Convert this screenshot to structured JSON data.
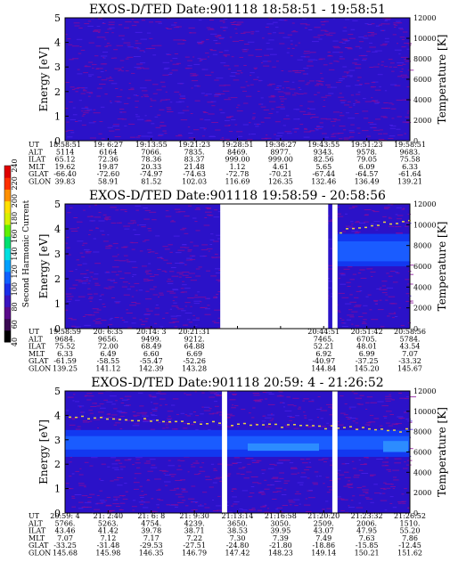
{
  "colorbar": {
    "label": "Second Harmonic Current",
    "ticks": [
      "40",
      "60",
      "80",
      "100",
      "120",
      "140",
      "160",
      "180",
      "200",
      "220",
      "240"
    ],
    "colors": [
      "#000000",
      "#3a0a52",
      "#5a0a8a",
      "#3a14c0",
      "#1a2ee8",
      "#1060ff",
      "#00a0ff",
      "#00e0e0",
      "#00e070",
      "#60f000",
      "#d8f000",
      "#ffe000",
      "#ff9000",
      "#ff3000",
      "#e00000"
    ]
  },
  "chart_data": [
    {
      "type": "heatmap",
      "title": "EXOS-D/TED   Date:901118   18:58:51 - 19:58:51",
      "ylabel": "Energy [eV]",
      "y2label": "Temperature [K]",
      "ylim": [
        0,
        5
      ],
      "y2lim": [
        0,
        12000
      ],
      "yticks": [
        "0",
        "1",
        "2",
        "3",
        "4",
        "5"
      ],
      "y2ticks": [
        "0",
        "2000",
        "4000",
        "6000",
        "8000",
        "10000",
        "12000"
      ],
      "row_labels": [
        "UT",
        "ALT",
        "ILAT",
        "MLT",
        "GLAT",
        "GLON"
      ],
      "columns": [
        [
          "18:58:51",
          "5114",
          "65.12",
          "19.62",
          "-66.40",
          "39.83"
        ],
        [
          "19: 6:27",
          "6164",
          "72.36",
          "19.87",
          "-72.60",
          "58.91"
        ],
        [
          "19:13:55",
          "7066.",
          "78.36",
          "20.33",
          "-74.97",
          "81.52"
        ],
        [
          "19:21:23",
          "7835.",
          "83.37",
          "21.48",
          "-74.63",
          "102.03"
        ],
        [
          "19:28:51",
          "8469.",
          "999.00",
          "1.12",
          "-72.78",
          "116.69"
        ],
        [
          "19:36:27",
          "8977.",
          "999.00",
          "4.61",
          "-70.21",
          "126.35"
        ],
        [
          "19:43:55",
          "9343.",
          "82.56",
          "5.65",
          "-67.44",
          "132.46"
        ],
        [
          "19:51:23",
          "9578.",
          "79.05",
          "6.09",
          "-64.57",
          "136.49"
        ],
        [
          "19:58:51",
          "9683.",
          "75.58",
          "6.33",
          "-61.64",
          "139.21"
        ]
      ],
      "gaps": []
    },
    {
      "type": "heatmap",
      "title": "EXOS-D/TED   Date:901118   19:58:59 - 20:58:56",
      "ylabel": "Energy [eV]",
      "y2label": "Temperature [K]",
      "ylim": [
        0,
        5
      ],
      "y2lim": [
        0,
        12000
      ],
      "yticks": [
        "0",
        "1",
        "2",
        "3",
        "4",
        "5"
      ],
      "y2ticks": [
        "0",
        "2000",
        "4000",
        "6000",
        "8000",
        "10000",
        "12000"
      ],
      "row_labels": [
        "UT",
        "ALT",
        "ILAT",
        "MLT",
        "GLAT",
        "GLON"
      ],
      "columns": [
        [
          "19:58:59",
          "9684.",
          "75.52",
          "6.33",
          "-61.59",
          "139.25"
        ],
        [
          "20: 6:35",
          "9656.",
          "72.00",
          "6.49",
          "-58.55",
          "141.12"
        ],
        [
          "20:14: 3",
          "9499.",
          "68.49",
          "6.60",
          "-55.47",
          "142.39"
        ],
        [
          "20:21:31",
          "9212.",
          "64.88",
          "6.69",
          "-52.26",
          "143.28"
        ],
        [
          "",
          "",
          "",
          "",
          "",
          ""
        ],
        [
          "",
          "",
          "",
          "",
          "",
          ""
        ],
        [
          "20:44:51",
          "7465.",
          "52.21",
          "6.92",
          "-40.97",
          "144.84"
        ],
        [
          "20:51:42",
          "6705.",
          "48.01",
          "6.99",
          "-37.25",
          "145.20"
        ],
        [
          "20:58:56",
          "5784.",
          "43.54",
          "7.07",
          "-33.32",
          "145.67"
        ]
      ],
      "gaps": [
        [
          0.45,
          0.763
        ],
        [
          0.775,
          0.79
        ]
      ]
    },
    {
      "type": "heatmap",
      "title": "EXOS-D/TED   Date:901118   20:59: 4 - 21:26:52",
      "ylabel": "Energy [eV]",
      "y2label": "Temperature [K]",
      "ylim": [
        0,
        5
      ],
      "y2lim": [
        0,
        12000
      ],
      "yticks": [
        "0",
        "1",
        "2",
        "3",
        "4",
        "5"
      ],
      "y2ticks": [
        "0",
        "2000",
        "4000",
        "6000",
        "8000",
        "10000",
        "12000"
      ],
      "row_labels": [
        "UT",
        "ALT",
        "ILAT",
        "MLT",
        "GLAT",
        "GLON"
      ],
      "columns": [
        [
          "20:59: 4",
          "5766.",
          "43.46",
          "7.07",
          "-33.25",
          "145.68"
        ],
        [
          "21: 2:40",
          "5263.",
          "41.42",
          "7.12",
          "-31.48",
          "145.98"
        ],
        [
          "21: 6: 8",
          "4754.",
          "39.78",
          "7.17",
          "-29.53",
          "146.35"
        ],
        [
          "21: 9:30",
          "4239.",
          "38.71",
          "7.22",
          "-27.51",
          "146.79"
        ],
        [
          "21:13:14",
          "3650.",
          "38.53",
          "7.30",
          "-24.80",
          "147.42"
        ],
        [
          "21:16:58",
          "3050.",
          "39.95",
          "7.39",
          "-21.80",
          "148.23"
        ],
        [
          "21:20:20",
          "2509.",
          "43.07",
          "7.49",
          "-18.86",
          "149.14"
        ],
        [
          "21:23:32",
          "2006.",
          "47.95",
          "7.63",
          "-15.85",
          "150.21"
        ],
        [
          "21:26:52",
          "1510.",
          "55.20",
          "7.86",
          "-12.45",
          "151.62"
        ]
      ],
      "gaps": [
        [
          0.455,
          0.47
        ],
        [
          0.775,
          0.79
        ]
      ]
    }
  ]
}
